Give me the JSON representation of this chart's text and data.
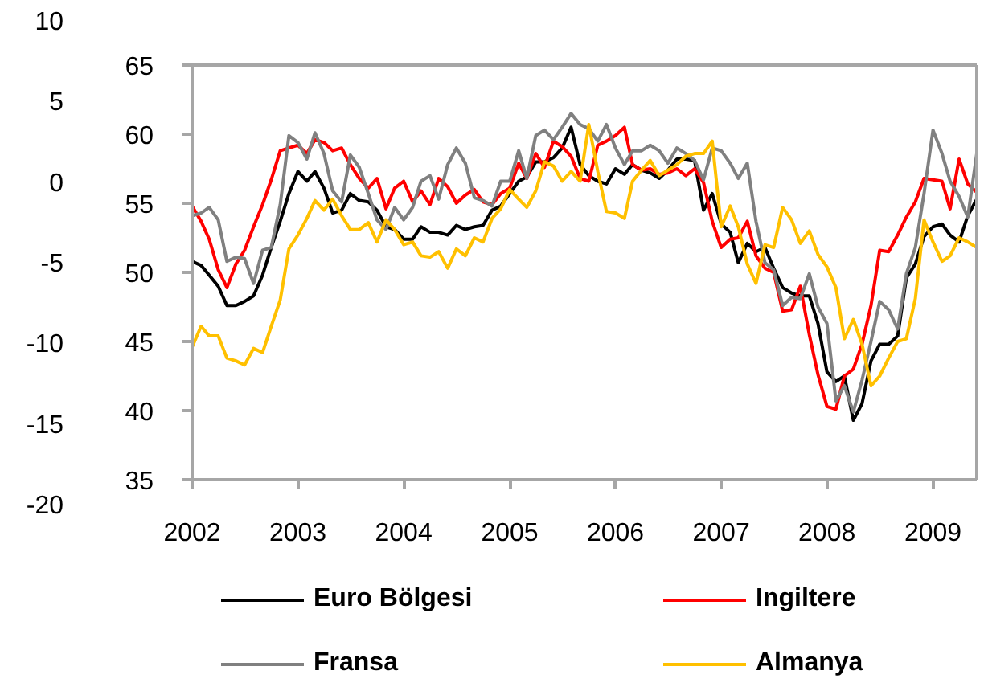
{
  "chart_data": {
    "type": "line",
    "x": [
      "2002-01",
      "2002-02",
      "2002-03",
      "2002-04",
      "2002-05",
      "2002-06",
      "2002-07",
      "2002-08",
      "2002-09",
      "2002-10",
      "2002-11",
      "2002-12",
      "2003-01",
      "2003-02",
      "2003-03",
      "2003-04",
      "2003-05",
      "2003-06",
      "2003-07",
      "2003-08",
      "2003-09",
      "2003-10",
      "2003-11",
      "2003-12",
      "2004-01",
      "2004-02",
      "2004-03",
      "2004-04",
      "2004-05",
      "2004-06",
      "2004-07",
      "2004-08",
      "2004-09",
      "2004-10",
      "2004-11",
      "2004-12",
      "2005-01",
      "2005-02",
      "2005-03",
      "2005-04",
      "2005-05",
      "2005-06",
      "2005-07",
      "2005-08",
      "2005-09",
      "2005-10",
      "2005-11",
      "2005-12",
      "2006-01",
      "2006-02",
      "2006-03",
      "2006-04",
      "2006-05",
      "2006-06",
      "2006-07",
      "2006-08",
      "2006-09",
      "2006-10",
      "2006-11",
      "2006-12",
      "2007-01",
      "2007-02",
      "2007-03",
      "2007-04",
      "2007-05",
      "2007-06",
      "2007-07",
      "2007-08",
      "2007-09",
      "2007-10",
      "2007-11",
      "2007-12",
      "2008-01",
      "2008-02",
      "2008-03",
      "2008-04",
      "2008-05",
      "2008-06",
      "2008-07",
      "2008-08",
      "2008-09",
      "2008-10",
      "2008-11",
      "2008-12",
      "2009-01",
      "2009-02",
      "2009-03",
      "2009-04",
      "2009-05",
      "2009-06"
    ],
    "series": [
      {
        "name": "Euro Bölgesi",
        "color": "#000000",
        "values": [
          50.8,
          50.5,
          49.8,
          49.0,
          47.6,
          47.6,
          47.9,
          48.3,
          49.8,
          51.8,
          53.7,
          55.7,
          57.3,
          56.6,
          57.3,
          56.1,
          54.3,
          54.5,
          55.7,
          55.2,
          55.1,
          54.5,
          53.3,
          53.1,
          52.4,
          52.4,
          53.3,
          52.9,
          52.9,
          52.7,
          53.4,
          53.1,
          53.3,
          53.4,
          54.5,
          54.8,
          55.7,
          56.6,
          56.9,
          58.0,
          58.0,
          58.3,
          59.0,
          60.5,
          57.8,
          57.0,
          56.6,
          56.4,
          57.5,
          57.1,
          57.8,
          57.4,
          57.2,
          56.8,
          57.4,
          58.2,
          58.2,
          58.1,
          54.5,
          55.7,
          53.5,
          52.9,
          50.7,
          52.1,
          51.5,
          51.8,
          50.3,
          48.9,
          48.5,
          48.3,
          48.3,
          46.3,
          42.8,
          42.1,
          42.5,
          39.3,
          40.5,
          43.6,
          44.8,
          44.8,
          45.4,
          49.6,
          50.6,
          52.6,
          53.3,
          53.5,
          52.7,
          52.2,
          54.1,
          55.3
        ]
      },
      {
        "name": "Ingiltere",
        "color": "#ff0000",
        "values": [
          54.8,
          53.7,
          52.4,
          50.2,
          48.9,
          50.6,
          51.6,
          53.3,
          54.9,
          56.7,
          58.8,
          59.0,
          59.2,
          58.6,
          59.6,
          59.4,
          58.8,
          59.0,
          57.8,
          56.8,
          56.1,
          56.8,
          54.6,
          56.1,
          56.6,
          55.1,
          55.9,
          54.9,
          56.8,
          56.2,
          55.0,
          55.6,
          56.0,
          55.1,
          54.9,
          55.7,
          56.1,
          57.9,
          56.8,
          58.6,
          57.6,
          59.5,
          59.1,
          58.4,
          56.8,
          56.6,
          59.2,
          59.5,
          59.9,
          60.5,
          57.8,
          57.4,
          57.5,
          57.1,
          57.2,
          57.5,
          57.0,
          57.5,
          56.5,
          53.7,
          51.8,
          52.4,
          52.5,
          53.7,
          51.2,
          50.3,
          50.0,
          47.2,
          47.3,
          49.0,
          45.5,
          42.6,
          40.3,
          40.1,
          42.5,
          43.0,
          44.8,
          47.6,
          51.6,
          51.5,
          52.7,
          54.0,
          55.1,
          56.8,
          56.7,
          56.6,
          54.6,
          58.2,
          56.4,
          55.8
        ]
      },
      {
        "name": "Fransa",
        "color": "#808080",
        "values": [
          54.1,
          54.3,
          54.7,
          53.8,
          50.8,
          51.1,
          51.0,
          49.2,
          51.6,
          51.8,
          54.9,
          59.9,
          59.4,
          58.2,
          60.1,
          58.6,
          55.9,
          55.1,
          58.5,
          57.6,
          55.7,
          53.8,
          53.1,
          54.7,
          53.8,
          54.7,
          56.6,
          57.0,
          55.3,
          57.8,
          59.0,
          57.9,
          55.4,
          55.2,
          54.8,
          56.6,
          56.6,
          58.8,
          56.8,
          59.9,
          60.3,
          59.6,
          60.5,
          61.5,
          60.7,
          60.4,
          59.5,
          60.7,
          59.0,
          57.8,
          58.8,
          58.8,
          59.2,
          58.8,
          57.9,
          59.0,
          58.6,
          58.1,
          56.7,
          59.0,
          58.8,
          57.9,
          56.8,
          57.9,
          53.7,
          50.7,
          50.2,
          47.6,
          48.2,
          48.1,
          49.9,
          47.5,
          46.3,
          40.7,
          41.8,
          39.9,
          42.2,
          45.0,
          47.9,
          47.3,
          45.9,
          49.9,
          51.8,
          55.7,
          60.3,
          58.6,
          56.6,
          55.5,
          54.0,
          58.6
        ]
      },
      {
        "name": "Almanya",
        "color": "#ffc000",
        "values": [
          44.6,
          46.1,
          45.4,
          45.4,
          43.8,
          43.6,
          43.3,
          44.5,
          44.2,
          46.1,
          48.0,
          51.7,
          52.7,
          53.9,
          55.2,
          54.5,
          55.3,
          54.1,
          53.1,
          53.1,
          53.6,
          52.2,
          53.8,
          53.1,
          52.0,
          52.2,
          51.2,
          51.1,
          51.5,
          50.3,
          51.7,
          51.2,
          52.5,
          52.2,
          53.9,
          54.6,
          56.0,
          55.3,
          54.7,
          55.9,
          58.0,
          57.7,
          56.6,
          57.3,
          56.6,
          60.7,
          57.3,
          54.4,
          54.3,
          53.9,
          56.6,
          57.4,
          58.1,
          57.0,
          57.4,
          57.8,
          58.4,
          58.6,
          58.6,
          59.5,
          53.3,
          54.8,
          53.3,
          50.6,
          49.2,
          52.0,
          51.8,
          54.7,
          53.8,
          52.1,
          53.0,
          51.3,
          50.4,
          48.9,
          45.2,
          46.6,
          44.8,
          41.8,
          42.5,
          43.8,
          45.0,
          45.2,
          48.1,
          53.8,
          52.2,
          50.8,
          51.2,
          52.5,
          52.2,
          51.8
        ]
      }
    ],
    "xlim": [
      "2002-01",
      "2009-06"
    ],
    "xticks": [
      "2002",
      "2003",
      "2004",
      "2005",
      "2006",
      "2007",
      "2008",
      "2009"
    ],
    "ylim": [
      35,
      65
    ],
    "yticks": [
      35,
      40,
      45,
      50,
      55,
      60,
      65
    ],
    "y2lim": [
      -20,
      10
    ],
    "y2ticks": [
      -20,
      -15,
      -10,
      -5,
      0,
      5,
      10
    ],
    "grid": false,
    "legend": "bottom",
    "line_style": "solid"
  }
}
